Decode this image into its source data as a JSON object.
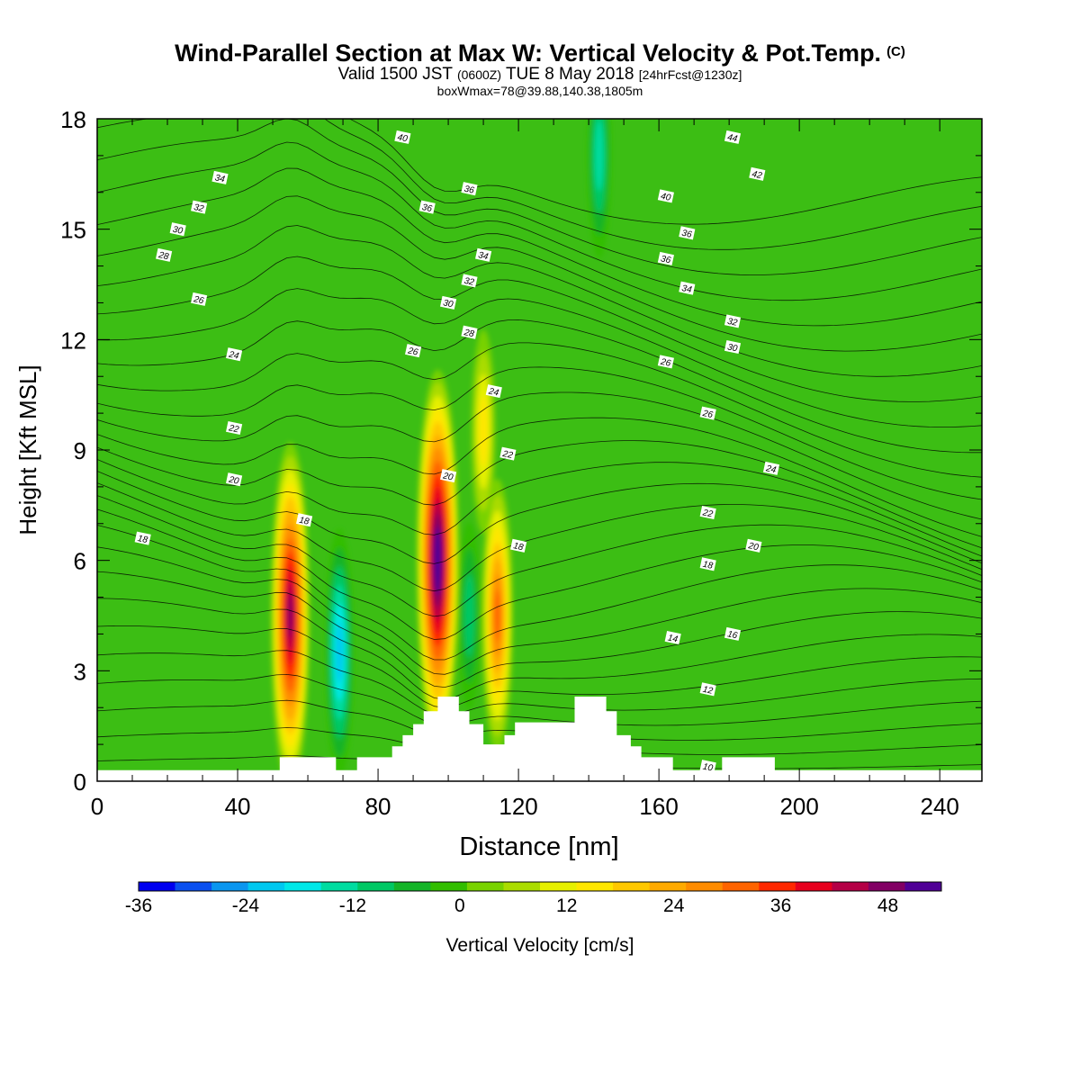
{
  "title": {
    "main": "Wind-Parallel Section at Max W: Vertical Velocity & Pot.Temp.",
    "copyright": "(C)",
    "valid_prefix": "Valid 1500 JST",
    "valid_utc": "(0600Z)",
    "valid_date": "TUE 8 May 2018",
    "forecast": "[24hrFcst@1230z]",
    "box_info": "boxWmax=78@39.88,140.38,1805m"
  },
  "chart_data": {
    "type": "heatmap",
    "title": "Wind-Parallel Section at Max W: Vertical Velocity & Pot.Temp.",
    "xlabel": "Distance [nm]",
    "ylabel": "Height [Kft MSL]",
    "xlim": [
      0,
      252
    ],
    "ylim": [
      0,
      18
    ],
    "x_ticks": [
      "0",
      "40",
      "80",
      "120",
      "160",
      "200",
      "240"
    ],
    "y_ticks": [
      "0",
      "3",
      "6",
      "9",
      "12",
      "15",
      "18"
    ],
    "colorbar": {
      "label": "Vertical Velocity [cm/s]",
      "range": [
        -36,
        54
      ],
      "step": 4,
      "tick_labels": [
        "-36",
        "-24",
        "-12",
        "0",
        "12",
        "24",
        "36",
        "48"
      ],
      "colors": [
        "#0000f0",
        "#0a50f0",
        "#0a96f0",
        "#00c8f0",
        "#00e8e8",
        "#00dca0",
        "#00c864",
        "#14b428",
        "#32be00",
        "#78d200",
        "#aadc00",
        "#e6f000",
        "#ffe600",
        "#ffc800",
        "#ffaa00",
        "#ff8c00",
        "#ff6400",
        "#ff2800",
        "#e6001e",
        "#b40046",
        "#820064",
        "#500096"
      ]
    },
    "vertical_velocity_cells": [
      {
        "x": 55,
        "y": 4.5,
        "w": 47,
        "note": "updraft"
      },
      {
        "x": 97,
        "y": 6,
        "w": 55,
        "note": "updraft"
      },
      {
        "x": 114,
        "y": 4.5,
        "w": 30,
        "note": "updraft"
      },
      {
        "x": 69,
        "y": 3.5,
        "w": -24,
        "note": "downdraft"
      },
      {
        "x": 106,
        "y": 4.5,
        "w": -10,
        "note": "downdraft"
      },
      {
        "x": 143,
        "y": 17,
        "w": -14,
        "note": "downdraft"
      },
      {
        "x": 110,
        "y": 9.5,
        "w": 14,
        "note": "updraft"
      }
    ],
    "pot_temp_contour_labels": [
      {
        "value": "40",
        "x": 87,
        "y": 17.5
      },
      {
        "value": "44",
        "x": 181,
        "y": 17.5
      },
      {
        "value": "34",
        "x": 35,
        "y": 16.4
      },
      {
        "value": "42",
        "x": 188,
        "y": 16.5
      },
      {
        "value": "36",
        "x": 106,
        "y": 16.1
      },
      {
        "value": "40",
        "x": 162,
        "y": 15.9
      },
      {
        "value": "32",
        "x": 29,
        "y": 15.6
      },
      {
        "value": "36",
        "x": 94,
        "y": 15.6
      },
      {
        "value": "30",
        "x": 23,
        "y": 15.0
      },
      {
        "value": "36",
        "x": 168,
        "y": 14.9
      },
      {
        "value": "28",
        "x": 19,
        "y": 14.3
      },
      {
        "value": "34",
        "x": 110,
        "y": 14.3
      },
      {
        "value": "36",
        "x": 162,
        "y": 14.2
      },
      {
        "value": "32",
        "x": 106,
        "y": 13.6
      },
      {
        "value": "34",
        "x": 168,
        "y": 13.4
      },
      {
        "value": "26",
        "x": 29,
        "y": 13.1
      },
      {
        "value": "30",
        "x": 100,
        "y": 13.0
      },
      {
        "value": "32",
        "x": 181,
        "y": 12.5
      },
      {
        "value": "28",
        "x": 106,
        "y": 12.2
      },
      {
        "value": "30",
        "x": 181,
        "y": 11.8
      },
      {
        "value": "24",
        "x": 39,
        "y": 11.6
      },
      {
        "value": "26",
        "x": 90,
        "y": 11.7
      },
      {
        "value": "26",
        "x": 162,
        "y": 11.4
      },
      {
        "value": "24",
        "x": 113,
        "y": 10.6
      },
      {
        "value": "26",
        "x": 174,
        "y": 10.0
      },
      {
        "value": "22",
        "x": 39,
        "y": 9.6
      },
      {
        "value": "22",
        "x": 117,
        "y": 8.9
      },
      {
        "value": "20",
        "x": 100,
        "y": 8.3
      },
      {
        "value": "24",
        "x": 192,
        "y": 8.5
      },
      {
        "value": "20",
        "x": 39,
        "y": 8.2
      },
      {
        "value": "22",
        "x": 174,
        "y": 7.3
      },
      {
        "value": "18",
        "x": 59,
        "y": 7.1
      },
      {
        "value": "18",
        "x": 13,
        "y": 6.6
      },
      {
        "value": "18",
        "x": 120,
        "y": 6.4
      },
      {
        "value": "20",
        "x": 187,
        "y": 6.4
      },
      {
        "value": "18",
        "x": 174,
        "y": 5.9
      },
      {
        "value": "14",
        "x": 164,
        "y": 3.9
      },
      {
        "value": "16",
        "x": 181,
        "y": 4.0
      },
      {
        "value": "12",
        "x": 174,
        "y": 2.5
      },
      {
        "value": "10",
        "x": 174,
        "y": 0.4
      }
    ],
    "terrain": [
      [
        0,
        0.3
      ],
      [
        52,
        0.3
      ],
      [
        52,
        0.65
      ],
      [
        68,
        0.65
      ],
      [
        68,
        0.3
      ],
      [
        74,
        0.3
      ],
      [
        74,
        0.65
      ],
      [
        84,
        0.65
      ],
      [
        84,
        0.95
      ],
      [
        87,
        0.95
      ],
      [
        87,
        1.25
      ],
      [
        90,
        1.25
      ],
      [
        90,
        1.55
      ],
      [
        93,
        1.55
      ],
      [
        93,
        1.9
      ],
      [
        97,
        1.9
      ],
      [
        97,
        2.3
      ],
      [
        103,
        2.3
      ],
      [
        103,
        1.9
      ],
      [
        106,
        1.9
      ],
      [
        106,
        1.55
      ],
      [
        110,
        1.55
      ],
      [
        110,
        1.0
      ],
      [
        116,
        1.0
      ],
      [
        116,
        1.25
      ],
      [
        119,
        1.25
      ],
      [
        119,
        1.6
      ],
      [
        136,
        1.6
      ],
      [
        136,
        2.3
      ],
      [
        145,
        2.3
      ],
      [
        145,
        1.9
      ],
      [
        148,
        1.9
      ],
      [
        148,
        1.25
      ],
      [
        152,
        1.25
      ],
      [
        152,
        0.95
      ],
      [
        155,
        0.95
      ],
      [
        155,
        0.65
      ],
      [
        164,
        0.65
      ],
      [
        164,
        0.3
      ],
      [
        178,
        0.3
      ],
      [
        178,
        0.65
      ],
      [
        193,
        0.65
      ],
      [
        193,
        0.3
      ],
      [
        252,
        0.3
      ],
      [
        252,
        0
      ],
      [
        0,
        0
      ]
    ],
    "grid": false,
    "legend": "bottom"
  }
}
